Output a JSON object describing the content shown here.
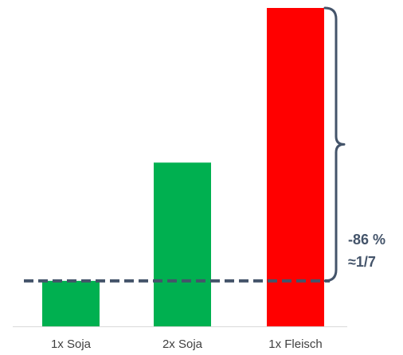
{
  "chart_data": {
    "type": "bar",
    "title": "",
    "xlabel": "",
    "ylabel": "",
    "categories": [
      "1x Soja",
      "2x Soja",
      "1x Fleisch"
    ],
    "values": [
      1,
      3.6,
      7
    ],
    "ylim": [
      0,
      7
    ],
    "bar_colors": [
      "#00b050",
      "#00b050",
      "#ff0000"
    ],
    "grid": false,
    "legend": "none",
    "reference_line": {
      "value": 1,
      "style": "dashed",
      "color": "#44546a"
    },
    "annotation": {
      "line1": "-86 %",
      "line2": "≈1/7",
      "color": "#44546a",
      "spans_from_value": 1,
      "spans_to_value": 7
    },
    "axis_color": "#d9d9d9"
  }
}
